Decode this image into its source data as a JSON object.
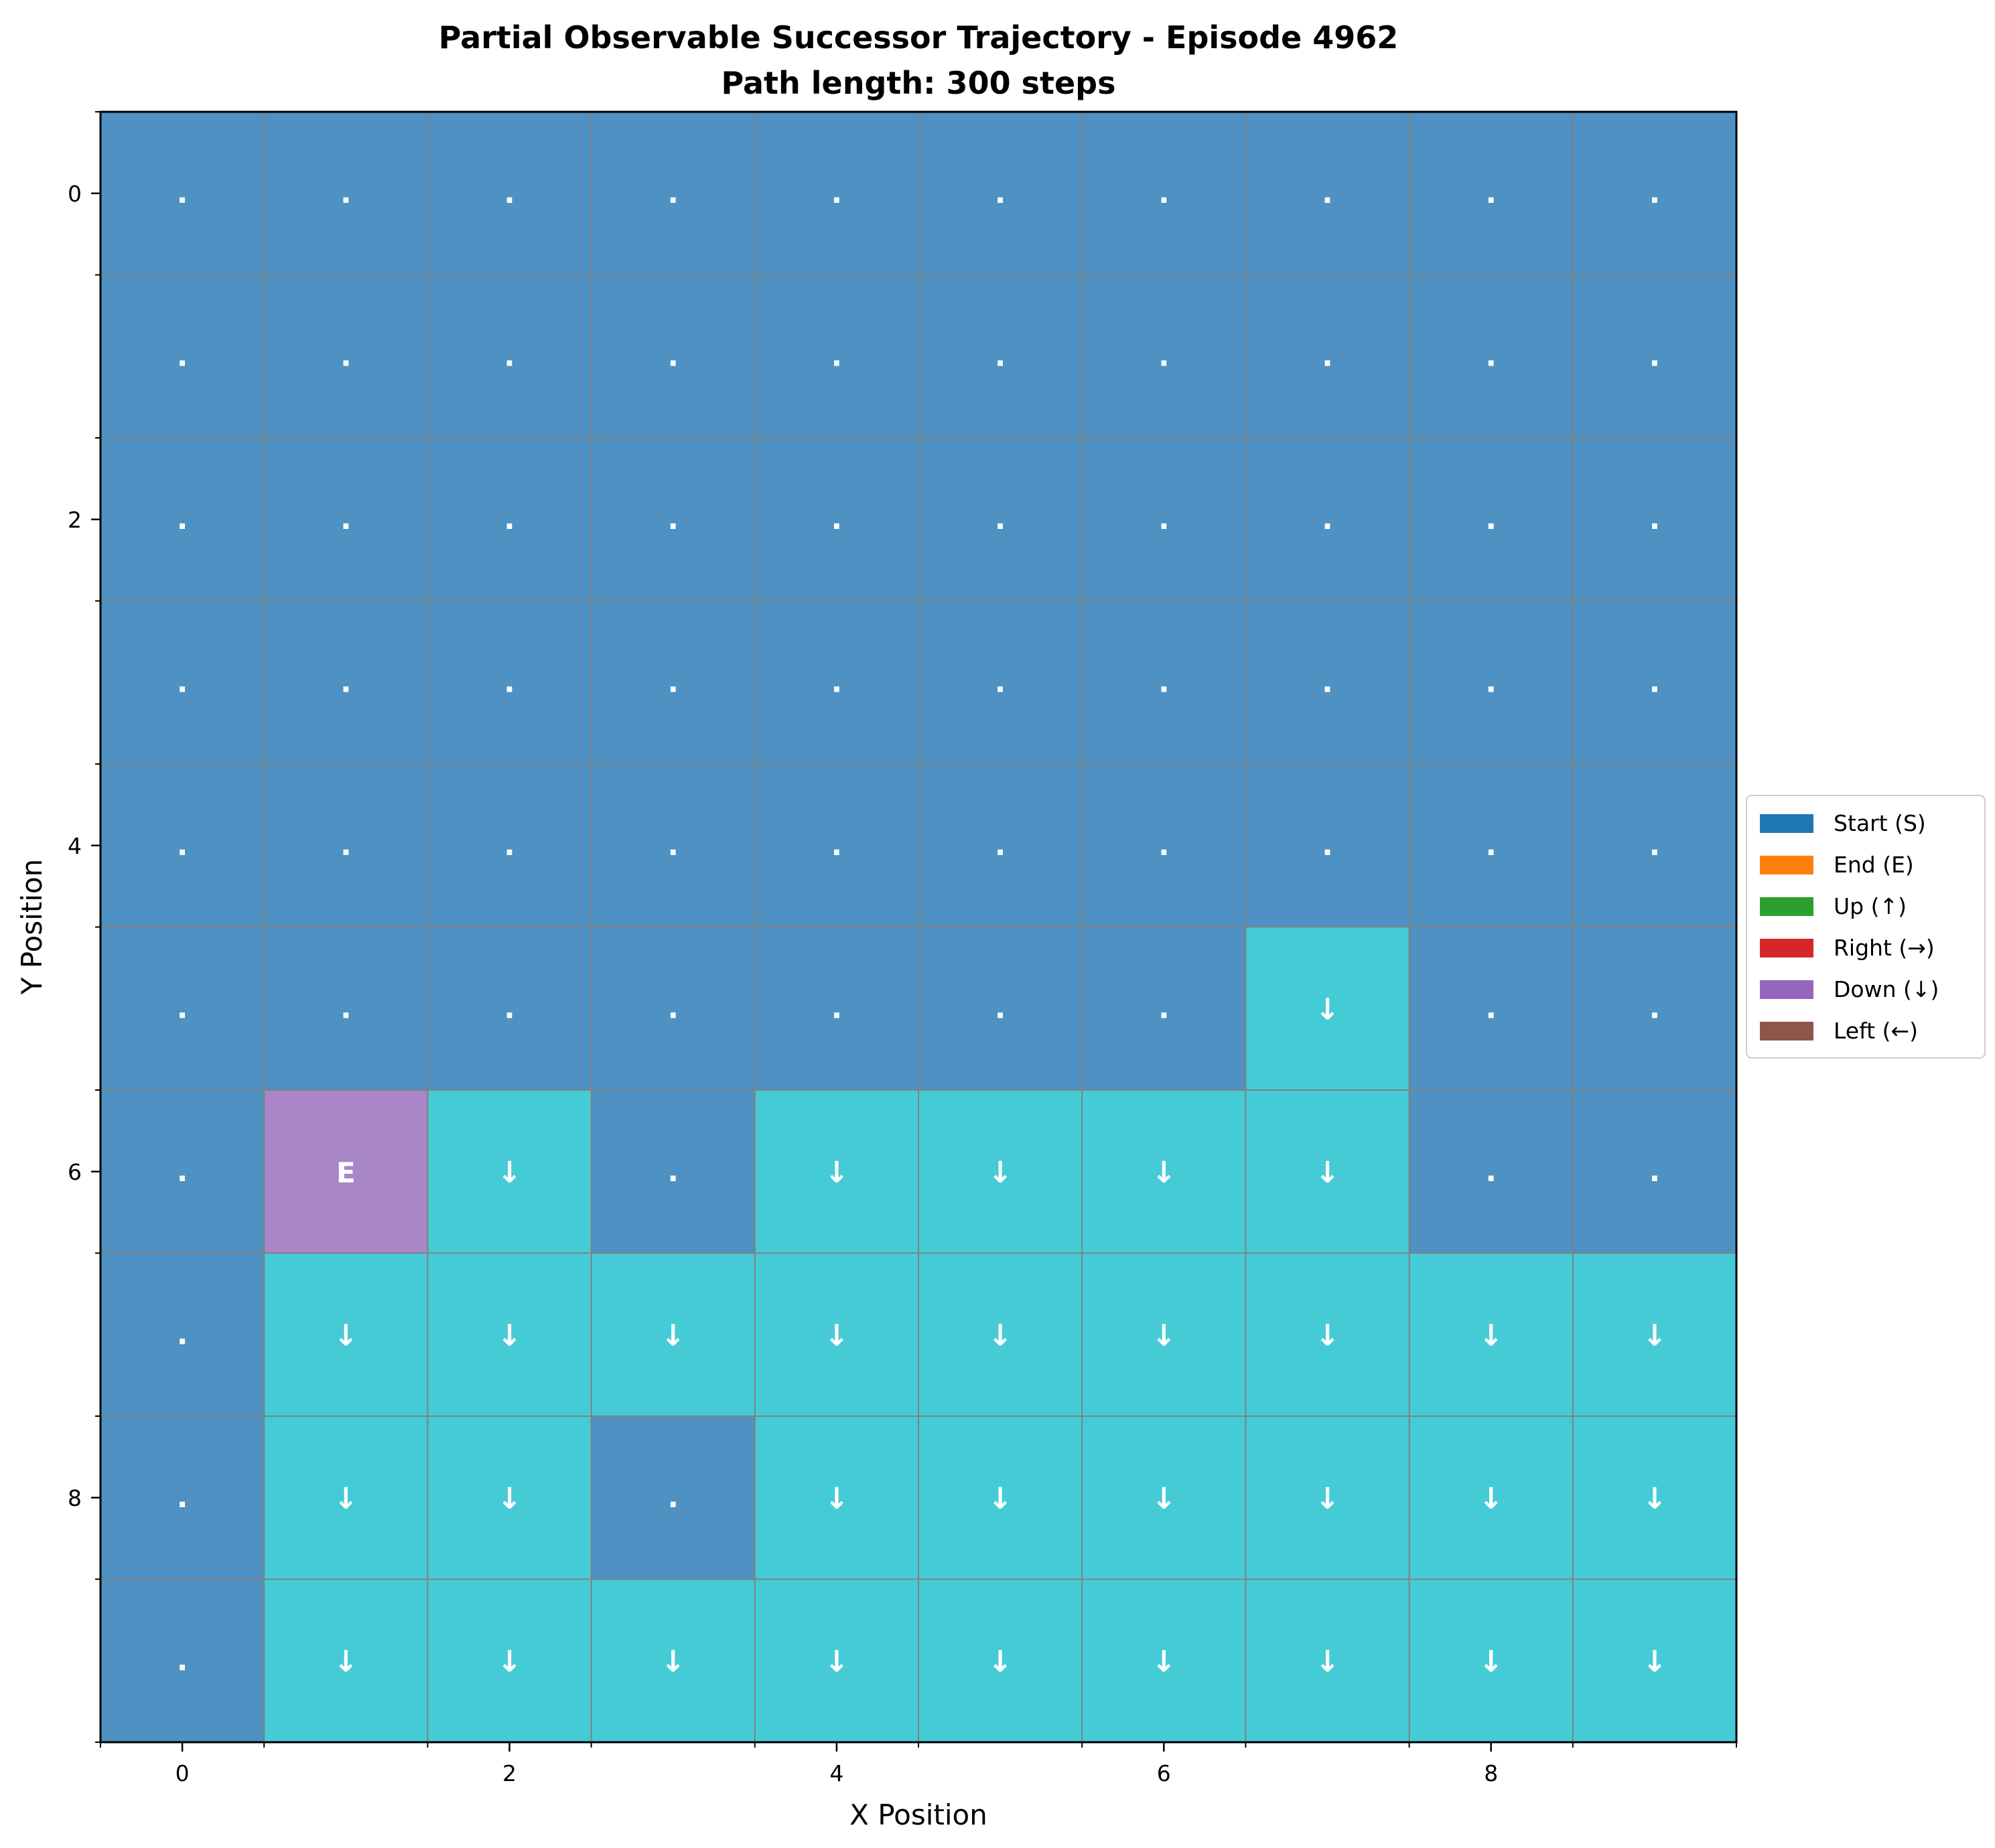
{
  "chart_data": {
    "type": "heatmap",
    "title_line1": "Partial Observable Successor Trajectory - Episode 4962",
    "title_line2": "Path length: 300 steps",
    "xlabel": "X Position",
    "ylabel": "Y Position",
    "x_ticks": [
      0,
      2,
      4,
      6,
      8
    ],
    "y_ticks": [
      0,
      2,
      4,
      6,
      8
    ],
    "xlim": [
      -0.5,
      9.5
    ],
    "ylim": [
      9.5,
      -0.5
    ],
    "grid": true,
    "legend_position": "center-right",
    "legend": [
      {
        "label": "Start (S)",
        "color": "#1f77b4"
      },
      {
        "label": "End (E)",
        "color": "#ff7f0e"
      },
      {
        "label": "Up (↑)",
        "color": "#2ca02c"
      },
      {
        "label": "Right (→)",
        "color": "#d62728"
      },
      {
        "label": "Down (↓)",
        "color": "#9467bd"
      },
      {
        "label": "Left (←)",
        "color": "#8c564b"
      }
    ],
    "cell_colors": {
      "empty": "#4e91c2",
      "visited": "#45cbd6",
      "end": "#a886c8",
      "grid_line": "#808080",
      "text": "#ffffff"
    },
    "grid_cells": [
      [
        ".",
        ".",
        ".",
        ".",
        ".",
        ".",
        ".",
        ".",
        ".",
        "."
      ],
      [
        ".",
        ".",
        ".",
        ".",
        ".",
        ".",
        ".",
        ".",
        ".",
        "."
      ],
      [
        ".",
        ".",
        ".",
        ".",
        ".",
        ".",
        ".",
        ".",
        ".",
        "."
      ],
      [
        ".",
        ".",
        ".",
        ".",
        ".",
        ".",
        ".",
        ".",
        ".",
        "."
      ],
      [
        ".",
        ".",
        ".",
        ".",
        ".",
        ".",
        ".",
        ".",
        ".",
        "."
      ],
      [
        ".",
        ".",
        ".",
        ".",
        ".",
        ".",
        ".",
        "↓",
        ".",
        "."
      ],
      [
        ".",
        "E",
        "↓",
        ".",
        "↓",
        "↓",
        "↓",
        "↓",
        ".",
        "."
      ],
      [
        ".",
        "↓",
        "↓",
        "↓",
        "↓",
        "↓",
        "↓",
        "↓",
        "↓",
        "↓"
      ],
      [
        ".",
        "↓",
        "↓",
        ".",
        "↓",
        "↓",
        "↓",
        "↓",
        "↓",
        "↓"
      ],
      [
        ".",
        "↓",
        "↓",
        "↓",
        "↓",
        "↓",
        "↓",
        "↓",
        "↓",
        "↓"
      ]
    ]
  }
}
